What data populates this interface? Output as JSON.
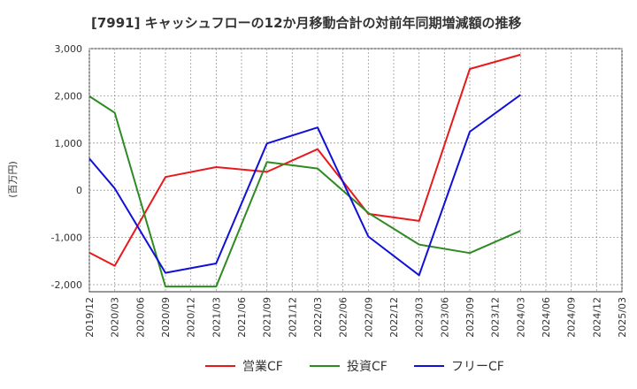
{
  "chart_data": {
    "type": "line",
    "title": "[7991]  キャッシュフローの12か月移動合計の対前年同期増減額の推移",
    "ylabel": "(百万円)",
    "xlabel": "",
    "ylim": [
      -2150,
      3000
    ],
    "yticks": [
      3000,
      2000,
      1000,
      0,
      -1000,
      -2000
    ],
    "ytick_labels": [
      "3,000",
      "2,000",
      "1,000",
      "0",
      "-1,000",
      "-2,000"
    ],
    "categories": [
      "2019/12",
      "2020/03",
      "2020/06",
      "2020/09",
      "2020/12",
      "2021/03",
      "2021/06",
      "2021/09",
      "2021/12",
      "2022/03",
      "2022/06",
      "2022/09",
      "2022/12",
      "2023/03",
      "2023/06",
      "2023/09",
      "2023/12",
      "2024/03",
      "2024/06",
      "2024/09",
      "2024/12",
      "2025/03"
    ],
    "grid": true,
    "legend_position": "bottom",
    "series": [
      {
        "name": "営業CF",
        "color": "#e8191b",
        "values": [
          -1320,
          -1600,
          null,
          280,
          null,
          490,
          null,
          390,
          null,
          870,
          null,
          -500,
          null,
          -650,
          null,
          2570,
          null,
          2870,
          null,
          null,
          null,
          null
        ]
      },
      {
        "name": "投資CF",
        "color": "#2e8b23",
        "values": [
          1990,
          1640,
          null,
          -2040,
          null,
          -2040,
          null,
          600,
          null,
          460,
          null,
          -480,
          null,
          -1150,
          null,
          -1330,
          null,
          -860,
          null,
          null,
          null,
          null
        ]
      },
      {
        "name": "フリーCF",
        "color": "#1010d8",
        "values": [
          670,
          40,
          null,
          -1750,
          null,
          -1550,
          null,
          990,
          null,
          1330,
          null,
          -980,
          null,
          -1800,
          null,
          1240,
          null,
          2020,
          null,
          null,
          null,
          null
        ]
      }
    ]
  }
}
